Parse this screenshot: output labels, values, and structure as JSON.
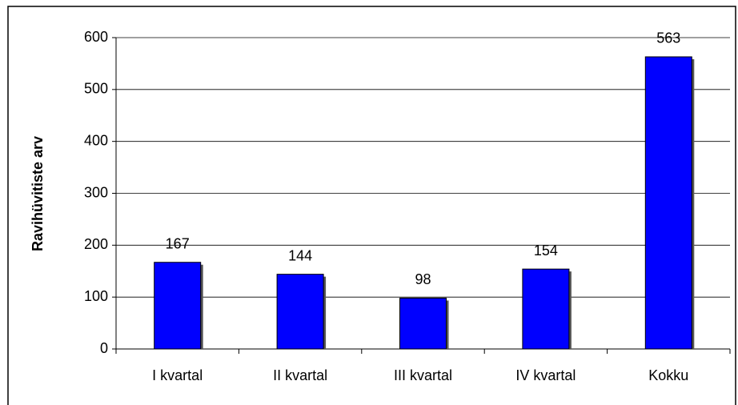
{
  "chart_data": {
    "type": "bar",
    "ylabel": "Ravihüvitiste arv",
    "categories": [
      "I kvartal",
      "II kvartal",
      "III kvartal",
      "IV kvartal",
      "Kokku"
    ],
    "values": [
      167,
      144,
      98,
      154,
      563
    ],
    "color": "#0000ff",
    "ylim": [
      0,
      600
    ],
    "yticks": [
      0,
      100,
      200,
      300,
      400,
      500,
      600
    ],
    "grid": true
  }
}
